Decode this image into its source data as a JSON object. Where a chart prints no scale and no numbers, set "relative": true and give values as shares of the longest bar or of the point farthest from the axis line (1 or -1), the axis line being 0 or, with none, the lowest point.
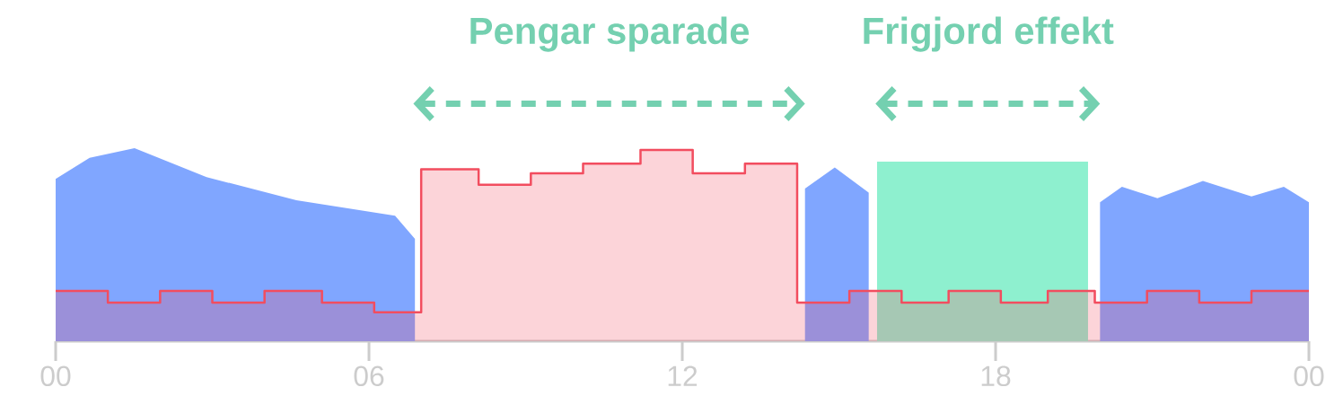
{
  "chart_data": {
    "type": "area",
    "relative": true,
    "xlim": [
      0,
      24
    ],
    "xticks": [
      {
        "value": 0,
        "label": "00"
      },
      {
        "value": 6,
        "label": "06"
      },
      {
        "value": 12,
        "label": "12"
      },
      {
        "value": 18,
        "label": "18"
      },
      {
        "value": 24,
        "label": "00"
      }
    ],
    "series": [
      {
        "color": "#80a6ff",
        "x": [
          0,
          0.65,
          1.51,
          2.89,
          4.61,
          6.5,
          6.88,
          7,
          14.35,
          14.92,
          15.57,
          16,
          20.0,
          20.42,
          21.1,
          21.97,
          22.9,
          23.52,
          24
        ],
        "values": [
          0.84,
          0.95,
          1,
          0.85,
          0.73,
          0.65,
          0.53,
          null,
          0.79,
          0.9,
          0.77,
          null,
          0.72,
          0.8,
          0.74,
          0.83,
          0.75,
          0.8,
          0.72
        ]
      },
      {
        "color": "#8ef0cf",
        "x": [
          15.73,
          19.77
        ],
        "values": [
          0.93,
          0.93
        ]
      },
      {
        "color": "#f24d5f",
        "x": [
          0,
          1,
          1,
          2,
          2,
          3,
          3,
          4,
          4,
          5.1,
          5.1,
          6.1,
          6.1,
          7,
          7,
          8.1,
          8.1,
          9.1,
          9.1,
          10.1,
          10.1,
          11.2,
          11.2,
          12.2,
          12.2,
          13.2,
          13.2,
          14.2,
          14.2,
          15.2,
          15.2,
          16.2,
          16.2,
          17.1,
          17.1,
          18.1,
          18.1,
          19,
          19,
          19.9,
          19.9,
          20.9,
          20.9,
          21.9,
          21.9,
          22.9,
          22.9,
          24
        ],
        "values": [
          0.26,
          0.26,
          0.2,
          0.2,
          0.26,
          0.26,
          0.2,
          0.2,
          0.26,
          0.26,
          0.2,
          0.2,
          0.15,
          0.15,
          0.89,
          0.89,
          0.81,
          0.81,
          0.87,
          0.87,
          0.92,
          0.92,
          0.99,
          0.99,
          0.87,
          0.87,
          0.92,
          0.92,
          0.2,
          0.2,
          0.26,
          0.26,
          0.2,
          0.2,
          0.26,
          0.26,
          0.2,
          0.2,
          0.26,
          0.26,
          0.2,
          0.2,
          0.26,
          0.26,
          0.2,
          0.2,
          0.26,
          0.26
        ]
      }
    ],
    "annotations": [
      "Pengar sparade",
      "Frigjord effekt"
    ]
  }
}
